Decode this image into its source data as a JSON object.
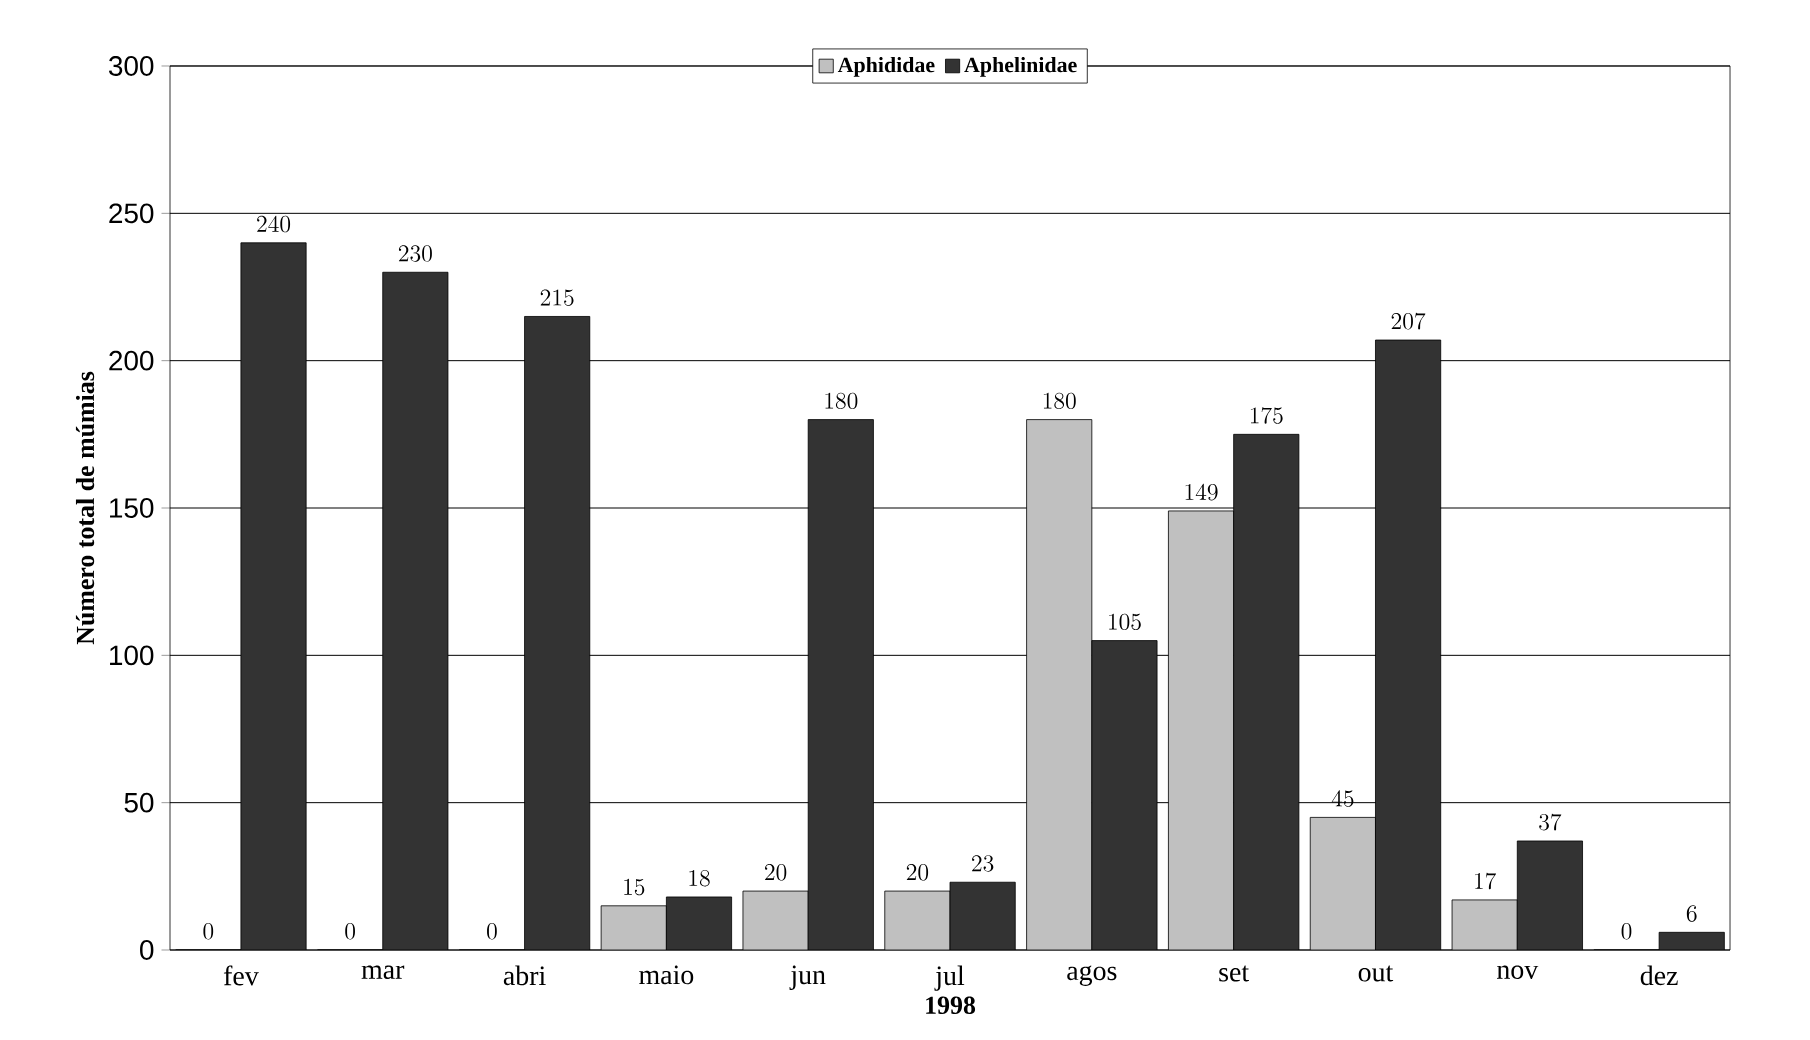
{
  "chart_data": {
    "type": "bar",
    "xlabel": "1998",
    "ylabel": "Número total de múmias",
    "categories": [
      "fev",
      "mar",
      "abri",
      "maio",
      "jun",
      "jul",
      "agos",
      "set",
      "out",
      "nov",
      "dez"
    ],
    "series": [
      {
        "name": "Aphididae",
        "color": "#c0c0c0",
        "values": [
          0,
          0,
          0,
          15,
          20,
          20,
          180,
          149,
          45,
          17,
          0
        ]
      },
      {
        "name": "Aphelinidae",
        "color": "#333333",
        "values": [
          240,
          230,
          215,
          18,
          180,
          23,
          105,
          175,
          207,
          37,
          6
        ]
      }
    ],
    "ylim": [
      0,
      300
    ],
    "yticks": [
      0,
      50,
      100,
      150,
      200,
      250,
      300
    ],
    "grid": "y",
    "legend": "top",
    "data_labels": true
  }
}
